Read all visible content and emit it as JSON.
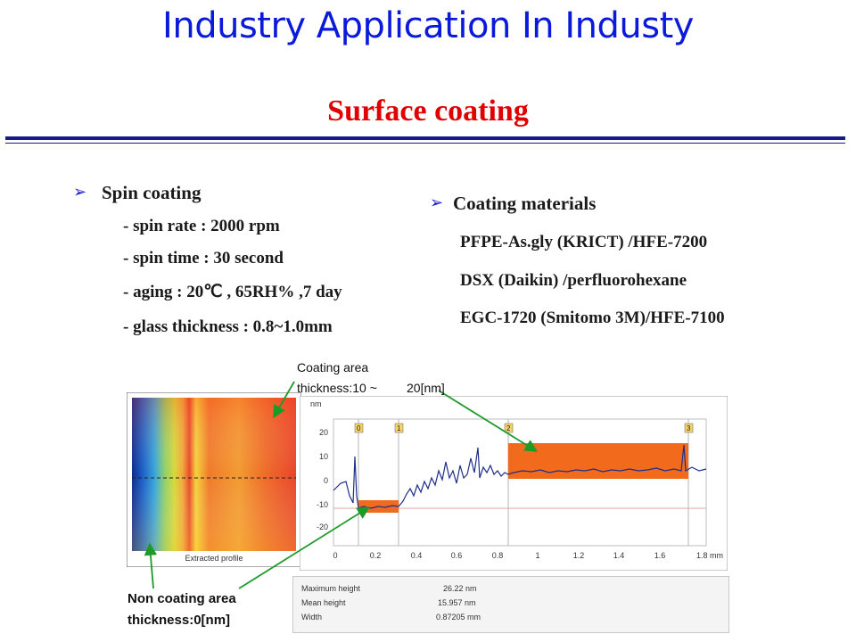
{
  "header": {
    "title": "Industry Application In Industy",
    "subtitle": "Surface coating"
  },
  "spin": {
    "heading": "Spin coating",
    "items": [
      "- spin rate :  2000 rpm",
      "- spin time : 30 second",
      "- aging : 20℃ , 65RH% ,7 day",
      "- glass thickness :  0.8~1.0mm"
    ]
  },
  "materials": {
    "heading": "Coating materials",
    "items": [
      "PFPE-As.gly (KRICT) /HFE-7200",
      "DSX (Daikin) /perfluorohexane",
      "EGC-1720 (Smitomo 3M)/HFE-7100"
    ]
  },
  "callouts": {
    "coating_line1": "Coating area",
    "coating_line2": "thickness:10 ~",
    "coating_line3": "20[nm]",
    "non_line1": "Non coating area",
    "non_line2": "thickness:0[nm]"
  },
  "figure": {
    "map_caption": "Extracted profile",
    "y_unit": "nm",
    "y_ticks": [
      "20",
      "10",
      "0",
      "-10",
      "-20"
    ],
    "x_ticks": [
      "0",
      "0.2",
      "0.4",
      "0.6",
      "0.8",
      "1",
      "1.2",
      "1.4",
      "1.6",
      "1.8 mm"
    ],
    "markers": [
      "0",
      "1",
      "2",
      "3"
    ],
    "stats": [
      {
        "label": "Maximum height",
        "value": "26.22 nm"
      },
      {
        "label": "Mean height",
        "value": "15.957 nm"
      },
      {
        "label": "Width",
        "value": "0.87205 mm"
      }
    ]
  },
  "colors": {
    "title": "#0a1adb",
    "subtitle": "#e00000",
    "highlight": "#f26a1b",
    "profile_line": "#1f2f8a",
    "arrow": "#1e9a2a"
  }
}
